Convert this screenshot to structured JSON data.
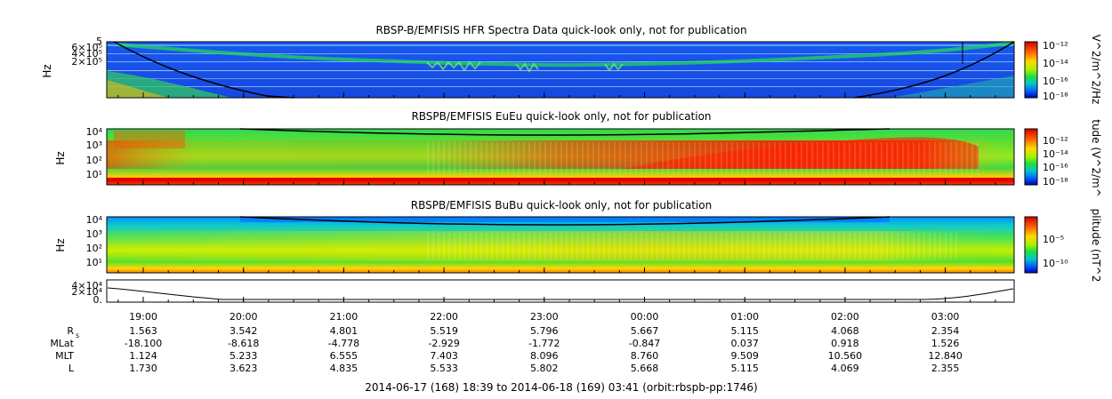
{
  "panels": [
    {
      "title": "RBSP-B/EMFISIS  HFR Spectra Data quick-look only, not for publication",
      "ylabel": "Hz",
      "ytick_labels": [
        "6×10⁵",
        "4×10⁵",
        "2×10⁵"
      ],
      "ytop_label": "5",
      "colorbar_label": "V^2/m^2/Hz",
      "colorbar_ticks": [
        "10⁻¹²",
        "10⁻¹⁴",
        "10⁻¹⁶",
        "10⁻¹⁸"
      ]
    },
    {
      "title": "RBSPB/EMFISIS  EuEu quick-look only, not for publication",
      "ylabel": "Hz",
      "ytick_labels": [
        "10⁴",
        "10³",
        "10²",
        "10¹"
      ],
      "colorbar_label": "tude (V^2/m^",
      "colorbar_ticks": [
        "10⁻¹²",
        "10⁻¹⁴",
        "10⁻¹⁶",
        "10⁻¹⁸"
      ]
    },
    {
      "title": "RBSPB/EMFISIS  BuBu quick-look only, not for publication",
      "ylabel": "Hz",
      "ytick_labels": [
        "10⁴",
        "10³",
        "10²",
        "10¹"
      ],
      "colorbar_label": "plitude (nT^2",
      "colorbar_ticks": [
        "10⁻⁵",
        "10⁻¹⁰"
      ]
    },
    {
      "ytick_labels": [
        "4×10⁴",
        "2×10⁴",
        "0."
      ]
    }
  ],
  "chart_data": {
    "type": "heatmap",
    "x_ticks": [
      "19:00",
      "20:00",
      "21:00",
      "22:00",
      "23:00",
      "00:00",
      "01:00",
      "02:00",
      "03:00"
    ],
    "ephemeris": [
      {
        "label": "R",
        "subscript": "s",
        "values": [
          "1.563",
          "3.542",
          "4.801",
          "5.519",
          "5.796",
          "5.667",
          "5.115",
          "4.068",
          "2.354"
        ]
      },
      {
        "label": "MLat",
        "values": [
          "-18.100",
          "-8.618",
          "-4.778",
          "-2.929",
          "-1.772",
          "-0.847",
          "0.037",
          "0.918",
          "1.526"
        ]
      },
      {
        "label": "MLT",
        "values": [
          "1.124",
          "5.233",
          "6.555",
          "7.403",
          "8.096",
          "8.760",
          "9.509",
          "10.560",
          "12.840"
        ]
      },
      {
        "label": "L",
        "values": [
          "1.730",
          "3.623",
          "4.835",
          "5.533",
          "5.802",
          "5.668",
          "5.115",
          "4.069",
          "2.355"
        ]
      }
    ],
    "footer": "2014-06-17 (168) 18:39 to 2014-06-18 (169) 03:41 (orbit:rbspb-pp:1746)"
  }
}
